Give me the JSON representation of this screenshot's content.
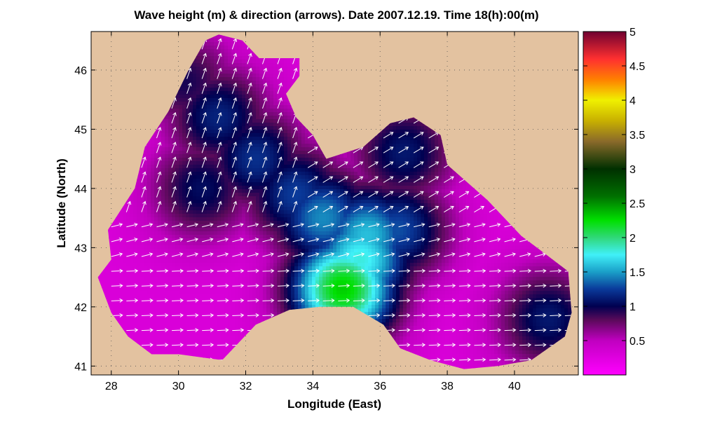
{
  "chart_data": {
    "type": "heatmap",
    "title": "Wave height (m) & direction (arrows). Date 2007.12.19. Time 18(h):00(m)",
    "xlabel": "Longitude (East)",
    "ylabel": "Latitude (North)",
    "xlim": [
      27.4,
      41.9
    ],
    "ylim": [
      40.85,
      46.65
    ],
    "x_ticks": [
      28,
      30,
      32,
      34,
      36,
      38,
      40
    ],
    "x_tick_labels": [
      "28",
      "30",
      "32",
      "34",
      "36",
      "38",
      "40"
    ],
    "y_ticks": [
      41,
      42,
      43,
      44,
      45,
      46
    ],
    "y_tick_labels": [
      "41",
      "42",
      "43",
      "44",
      "45",
      "46"
    ],
    "grid": true,
    "colorbar": {
      "range": [
        0,
        5
      ],
      "ticks": [
        0.5,
        1,
        1.5,
        2,
        2.5,
        3,
        3.5,
        4,
        4.5,
        5
      ],
      "tick_labels": [
        "0.5",
        "1",
        "1.5",
        "2",
        "2.5",
        "3",
        "3.5",
        "4",
        "4.5",
        "5"
      ],
      "stops": [
        {
          "v": 0.0,
          "color": "#ff00ff"
        },
        {
          "v": 0.5,
          "color": "#c000c0"
        },
        {
          "v": 0.8,
          "color": "#5a0a5a"
        },
        {
          "v": 1.0,
          "color": "#000050"
        },
        {
          "v": 1.25,
          "color": "#0a3a9a"
        },
        {
          "v": 1.5,
          "color": "#1a9fc8"
        },
        {
          "v": 1.75,
          "color": "#40f0f8"
        },
        {
          "v": 2.0,
          "color": "#30d878"
        },
        {
          "v": 2.25,
          "color": "#00e000"
        },
        {
          "v": 2.6,
          "color": "#007000"
        },
        {
          "v": 3.0,
          "color": "#003000"
        },
        {
          "v": 3.4,
          "color": "#8a6a2a"
        },
        {
          "v": 3.7,
          "color": "#c8b000"
        },
        {
          "v": 4.0,
          "color": "#f0f000"
        },
        {
          "v": 4.3,
          "color": "#ff8000"
        },
        {
          "v": 4.6,
          "color": "#ff3030"
        },
        {
          "v": 5.0,
          "color": "#700030"
        }
      ]
    },
    "land_color": "#e3c2a0",
    "sea_outline_lon_lat": [
      [
        31.2,
        46.6
      ],
      [
        31.9,
        46.5
      ],
      [
        32.4,
        46.2
      ],
      [
        33.6,
        46.2
      ],
      [
        33.6,
        45.9
      ],
      [
        33.2,
        45.6
      ],
      [
        33.5,
        45.2
      ],
      [
        34.0,
        44.9
      ],
      [
        34.4,
        44.5
      ],
      [
        35.5,
        44.7
      ],
      [
        36.3,
        45.1
      ],
      [
        37.0,
        45.2
      ],
      [
        37.8,
        44.9
      ],
      [
        38.0,
        44.4
      ],
      [
        39.2,
        43.8
      ],
      [
        40.2,
        43.2
      ],
      [
        40.9,
        42.9
      ],
      [
        41.6,
        42.6
      ],
      [
        41.7,
        41.9
      ],
      [
        41.5,
        41.5
      ],
      [
        40.5,
        41.1
      ],
      [
        39.5,
        41.0
      ],
      [
        38.5,
        40.95
      ],
      [
        37.5,
        41.1
      ],
      [
        36.6,
        41.3
      ],
      [
        36.1,
        41.7
      ],
      [
        35.2,
        42.0
      ],
      [
        34.2,
        42.0
      ],
      [
        33.3,
        41.95
      ],
      [
        32.3,
        41.7
      ],
      [
        31.3,
        41.1
      ],
      [
        30.0,
        41.2
      ],
      [
        29.2,
        41.2
      ],
      [
        28.5,
        41.5
      ],
      [
        28.0,
        41.9
      ],
      [
        27.6,
        42.5
      ],
      [
        28.0,
        42.8
      ],
      [
        27.9,
        43.3
      ],
      [
        28.7,
        44.0
      ],
      [
        29.0,
        44.7
      ],
      [
        29.7,
        45.3
      ],
      [
        30.3,
        46.0
      ],
      [
        30.8,
        46.5
      ]
    ],
    "wave_peaks": [
      {
        "lon": 34.9,
        "lat": 42.3,
        "height": 2.3
      },
      {
        "lon": 35.4,
        "lat": 42.8,
        "height": 1.8
      },
      {
        "lon": 35.6,
        "lat": 43.2,
        "height": 1.6
      },
      {
        "lon": 34.3,
        "lat": 43.5,
        "height": 1.45
      },
      {
        "lon": 36.5,
        "lat": 43.3,
        "height": 1.3
      },
      {
        "lon": 33.5,
        "lat": 43.9,
        "height": 1.25
      },
      {
        "lon": 32.3,
        "lat": 44.5,
        "height": 1.2
      },
      {
        "lon": 31.2,
        "lat": 45.2,
        "height": 1.15
      },
      {
        "lon": 30.7,
        "lat": 44.0,
        "height": 1.05
      },
      {
        "lon": 30.2,
        "lat": 45.8,
        "height": 0.95
      },
      {
        "lon": 36.7,
        "lat": 44.6,
        "height": 1.1
      },
      {
        "lon": 41.0,
        "lat": 41.8,
        "height": 1.1
      }
    ],
    "base_wave_height": 0.3
  }
}
